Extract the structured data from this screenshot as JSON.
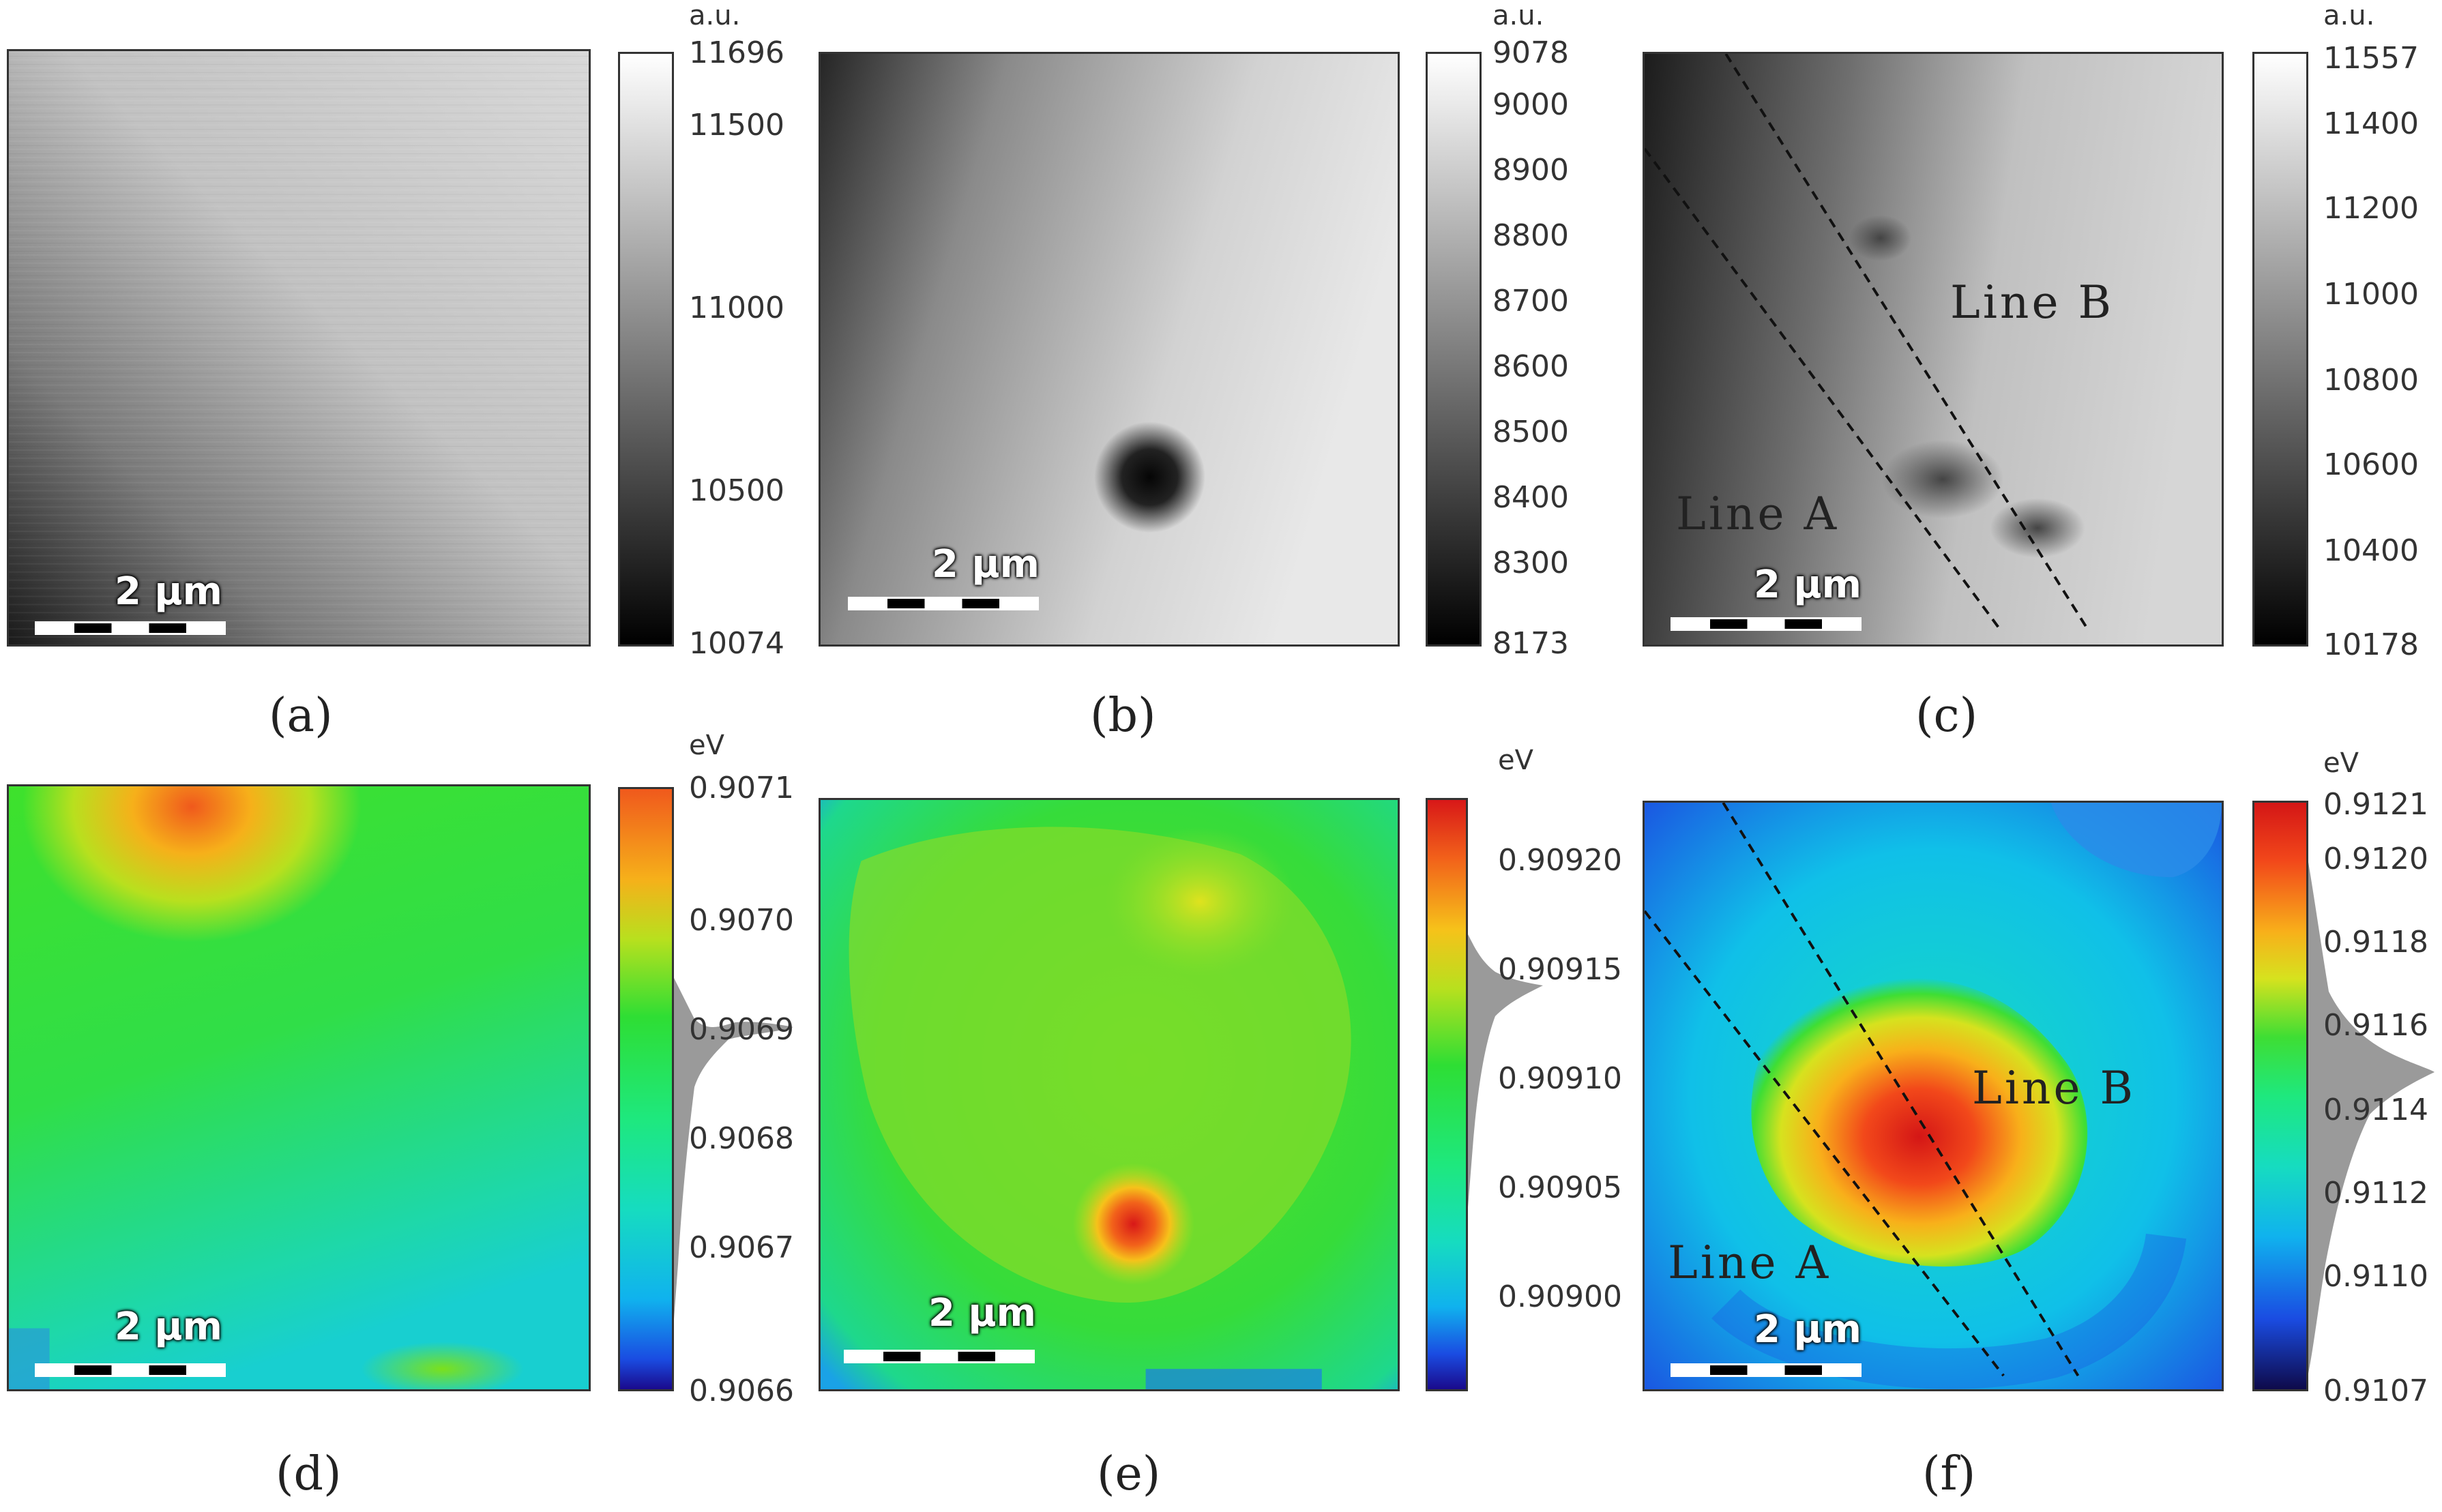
{
  "panels": {
    "a": {
      "caption": "(a)",
      "unit": "a.u.",
      "ticks": [
        "11696",
        "11500",
        "11000",
        "10500",
        "10074"
      ],
      "scalebar": "2 μm"
    },
    "b": {
      "caption": "(b)",
      "unit": "a.u.",
      "ticks": [
        "9078",
        "9000",
        "8900",
        "8800",
        "8700",
        "8600",
        "8500",
        "8400",
        "8300",
        "8173"
      ],
      "scalebar": "2 μm"
    },
    "c": {
      "caption": "(c)",
      "unit": "a.u.",
      "ticks": [
        "11557",
        "11400",
        "11200",
        "11000",
        "10800",
        "10600",
        "10400",
        "10178"
      ],
      "scalebar": "2 μm",
      "line_a": "Line A",
      "line_b": "Line B"
    },
    "d": {
      "caption": "(d)",
      "unit": "eV",
      "ticks": [
        "0.9071",
        "0.9070",
        "0.9069",
        "0.9068",
        "0.9067",
        "0.9066"
      ],
      "scalebar": "2 μm"
    },
    "e": {
      "caption": "(e)",
      "unit": "eV",
      "ticks": [
        "0.90920",
        "0.90915",
        "0.90910",
        "0.90905",
        "0.90900"
      ],
      "scalebar": "2 μm"
    },
    "f": {
      "caption": "(f)",
      "unit": "eV",
      "ticks": [
        "0.9121",
        "0.9120",
        "0.9118",
        "0.9116",
        "0.9114",
        "0.9112",
        "0.9110",
        "0.9107"
      ],
      "scalebar": "2 μm",
      "line_a": "Line A",
      "line_b": "Line B"
    }
  },
  "colors": {
    "gray_dark": "#000000",
    "gray_light": "#ffffff",
    "jet_low": "#1a0a8c",
    "jet_mid": "#22e11e",
    "jet_high": "#e0231b"
  }
}
